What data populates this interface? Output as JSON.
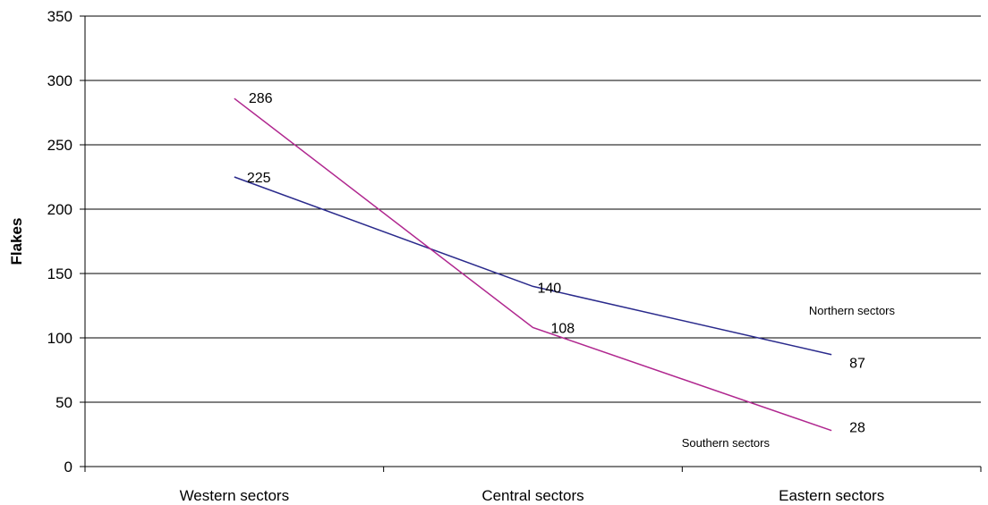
{
  "chart_data": {
    "type": "line",
    "title": "",
    "xlabel": "",
    "ylabel": "Flakes",
    "ylim": [
      0,
      350
    ],
    "yticks": [
      0,
      50,
      100,
      150,
      200,
      250,
      300,
      350
    ],
    "grid": true,
    "categories": [
      "Western sectors",
      "Central sectors",
      "Eastern sectors"
    ],
    "series": [
      {
        "name": "Northern sectors",
        "values": [
          225,
          140,
          87
        ],
        "labels": [
          "225",
          "140",
          "87"
        ],
        "color": "#2a2a8c"
      },
      {
        "name": "Southern sectors",
        "values": [
          286,
          108,
          28
        ],
        "labels": [
          "286",
          "108",
          "28"
        ],
        "color": "#b0278f"
      }
    ]
  }
}
